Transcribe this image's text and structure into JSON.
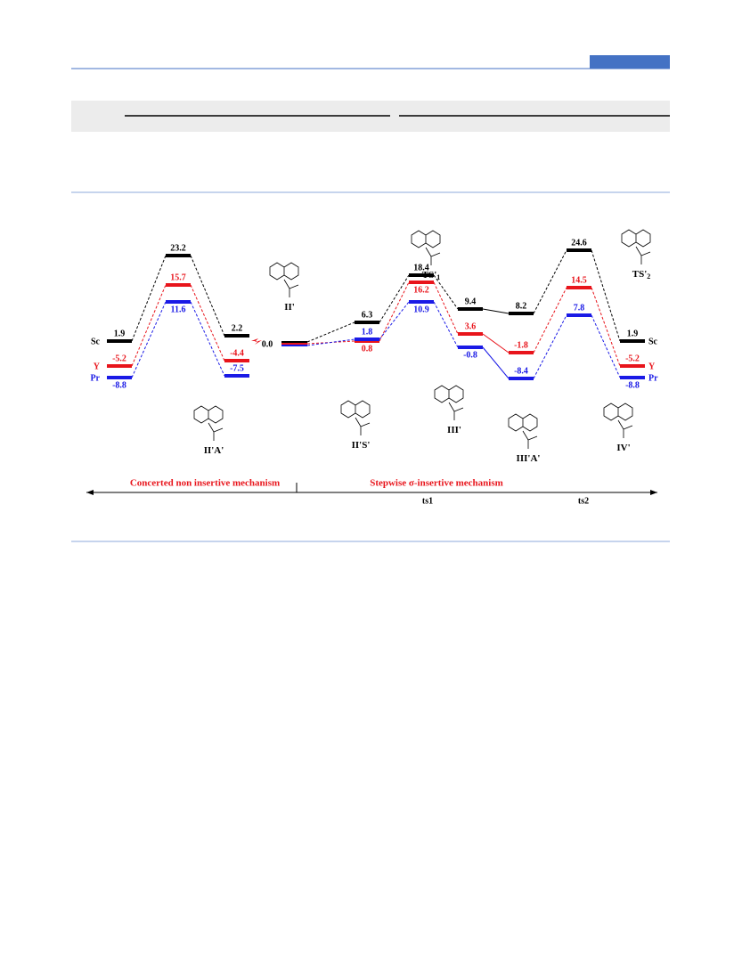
{
  "energy_profile": {
    "series": [
      {
        "name": "Sc",
        "color": "#000000",
        "values": [
          "1.9",
          "23.2",
          "2.2",
          "6.3",
          "18.4",
          "9.4",
          "8.2",
          "24.6",
          "1.9"
        ]
      },
      {
        "name": "Y",
        "color": "#e8141b",
        "values": [
          "-5.2",
          "15.7",
          "-4.4",
          "0.8",
          "16.2",
          "3.6",
          "-1.8",
          "14.5",
          "-5.2"
        ]
      },
      {
        "name": "Pr",
        "color": "#1a1ae6",
        "values": [
          "-8.8",
          "11.6",
          "-7.5",
          "1.8",
          "10.9",
          "-0.8",
          "-8.4",
          "7.8",
          "-8.8"
        ]
      }
    ],
    "origin": "0.0",
    "structures": [
      {
        "label": "II'"
      },
      {
        "label": "II'A'"
      },
      {
        "label": "II'S'"
      },
      {
        "label": "III'"
      },
      {
        "label": "III'A'"
      },
      {
        "label": "IV'"
      },
      {
        "label": "TS'",
        "sub": "1"
      },
      {
        "label": "TS'",
        "sub": "2"
      }
    ],
    "axis": {
      "left": "Concerted non insertive mechanism",
      "right": "Stepwise σ-insertive mechanism",
      "ticks": [
        "ts1",
        "ts2"
      ]
    }
  }
}
